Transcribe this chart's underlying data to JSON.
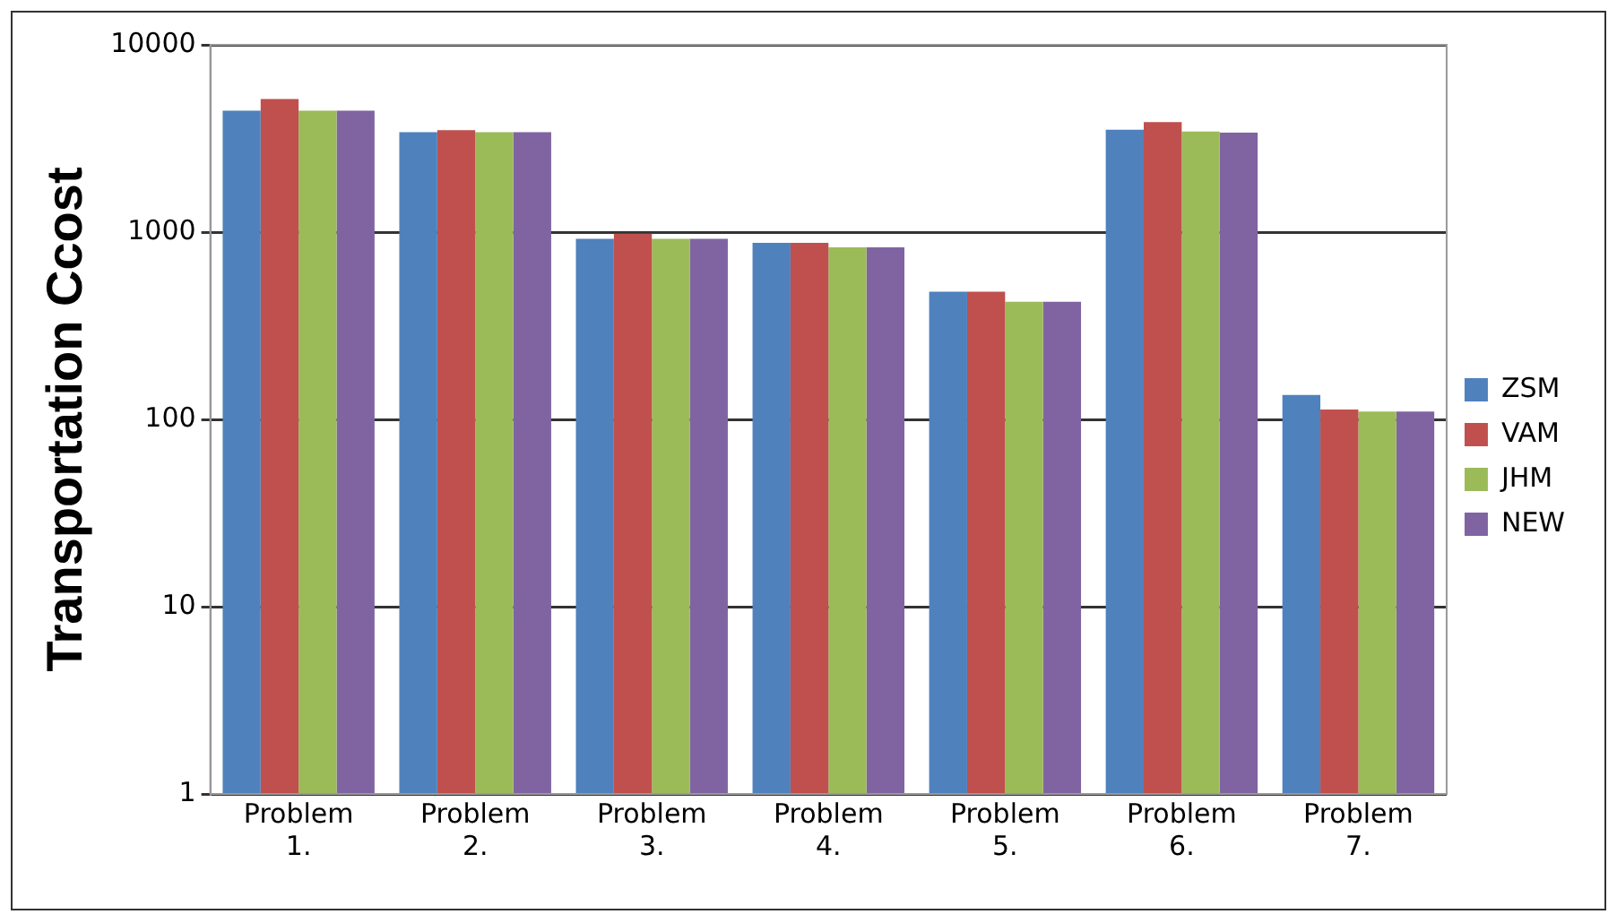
{
  "chart_data": {
    "type": "bar",
    "ylabel": "Transportation Ccost",
    "categories": [
      "Problem 1.",
      "Problem 2.",
      "Problem 3.",
      "Problem 4.",
      "Problem 5.",
      "Problem 6.",
      "Problem 7."
    ],
    "series": [
      {
        "name": "ZSM",
        "color": "#4f81bd",
        "values": [
          4450,
          3420,
          920,
          875,
          480,
          3520,
          135
        ]
      },
      {
        "name": "VAM",
        "color": "#c0504d",
        "values": [
          5130,
          3500,
          980,
          875,
          480,
          3870,
          113
        ]
      },
      {
        "name": "JHM",
        "color": "#9bbb59",
        "values": [
          4450,
          3420,
          920,
          830,
          425,
          3440,
          110
        ]
      },
      {
        "name": "NEW",
        "color": "#8064a2",
        "values": [
          4450,
          3420,
          920,
          830,
          425,
          3400,
          110
        ]
      }
    ],
    "log": true,
    "ylim": [
      1,
      10000
    ],
    "yticks": [
      1,
      10,
      100,
      1000,
      10000
    ],
    "grid": "y",
    "legend": "right"
  }
}
